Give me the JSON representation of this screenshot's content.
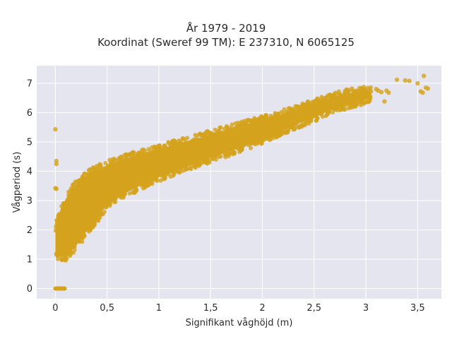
{
  "chart_data": {
    "type": "scatter",
    "title_line1": "År 1979 - 2019",
    "title_line2": "Koordinat (Sweref 99 TM): E 237310, N 6065125",
    "xlabel": "Signifikant våghöjd (m)",
    "ylabel": "Vågperiod (s)",
    "xlim": [
      -0.18,
      3.73
    ],
    "ylim": [
      -0.35,
      7.6
    ],
    "x_ticks": [
      0,
      0.5,
      1,
      1.5,
      2,
      2.5,
      3,
      3.5
    ],
    "x_tick_labels": [
      "0",
      "0,5",
      "1",
      "1,5",
      "2",
      "2,5",
      "3",
      "3,5"
    ],
    "y_ticks": [
      0,
      1,
      2,
      3,
      4,
      5,
      6,
      7
    ],
    "y_tick_labels": [
      "0",
      "1",
      "2",
      "3",
      "4",
      "5",
      "6",
      "7"
    ],
    "grid": true,
    "marker_color": "#d4a21c",
    "background_color": "#e5e5ef",
    "series": [
      {
        "points": [
          [
            0.0,
            5.43
          ],
          [
            0.01,
            4.35
          ],
          [
            0.01,
            4.25
          ],
          [
            0.0,
            3.42
          ],
          [
            0.01,
            3.4
          ],
          [
            0.1,
            1.1
          ],
          [
            0.08,
            1.05
          ],
          [
            0.12,
            1.2
          ],
          [
            2.1,
            5.85
          ],
          [
            2.4,
            6.2
          ],
          [
            2.7,
            6.5
          ],
          [
            2.9,
            6.62
          ],
          [
            3.0,
            6.65
          ],
          [
            3.05,
            6.72
          ],
          [
            3.1,
            6.8
          ],
          [
            3.12,
            6.75
          ],
          [
            3.15,
            6.7
          ],
          [
            3.2,
            6.75
          ],
          [
            3.22,
            6.68
          ],
          [
            3.18,
            6.38
          ],
          [
            3.3,
            7.12
          ],
          [
            3.38,
            7.1
          ],
          [
            3.42,
            7.08
          ],
          [
            3.5,
            7.0
          ],
          [
            3.53,
            6.72
          ],
          [
            3.56,
            7.25
          ],
          [
            3.58,
            6.85
          ],
          [
            3.6,
            6.82
          ],
          [
            3.55,
            6.68
          ],
          [
            2.75,
            6.4
          ]
        ],
        "band": {
          "x": [
            0.0,
            0.05,
            0.1,
            0.2,
            0.3,
            0.4,
            0.5,
            0.7,
            0.9,
            1.1,
            1.3,
            1.5,
            1.7,
            1.9,
            2.1,
            2.3,
            2.5,
            2.7,
            2.9,
            3.05
          ],
          "upper": [
            2.0,
            2.7,
            3.05,
            3.55,
            3.85,
            4.05,
            4.2,
            4.45,
            4.65,
            4.85,
            5.05,
            5.25,
            5.45,
            5.65,
            5.85,
            6.05,
            6.3,
            6.55,
            6.7,
            6.75
          ],
          "lower": [
            1.15,
            1.1,
            1.1,
            1.45,
            1.95,
            2.4,
            2.85,
            3.3,
            3.65,
            3.95,
            4.2,
            4.45,
            4.7,
            4.95,
            5.25,
            5.55,
            5.85,
            6.15,
            6.35,
            6.5
          ]
        },
        "zero_cluster": {
          "x_range": [
            0.0,
            0.09
          ],
          "y": 0
        }
      }
    ]
  }
}
